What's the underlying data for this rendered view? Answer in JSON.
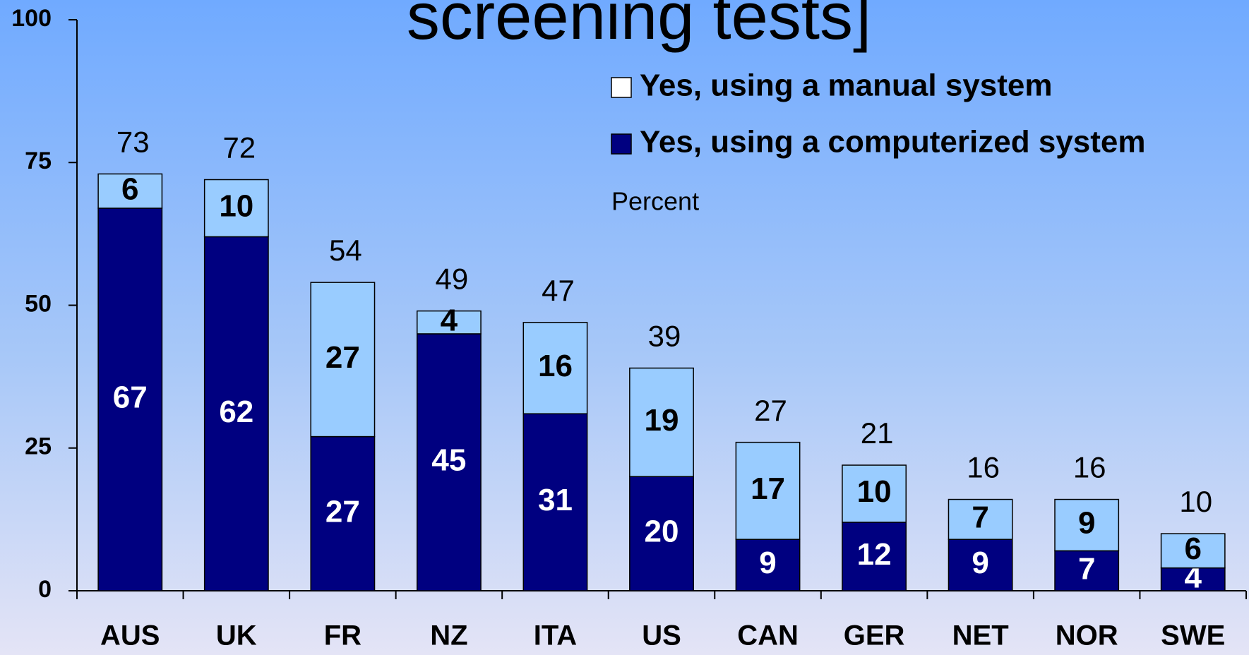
{
  "chart_data": {
    "type": "stacked-bar",
    "title": "screening tests]",
    "annotation": "Percent",
    "categories": [
      "AUS",
      "UK",
      "FR",
      "NZ",
      "ITA",
      "US",
      "CAN",
      "GER",
      "NET",
      "NOR",
      "SWE"
    ],
    "series": [
      {
        "name": "Yes, using a computerized system",
        "color": "#000080",
        "values": [
          67,
          62,
          27,
          45,
          31,
          20,
          9,
          12,
          9,
          7,
          4
        ]
      },
      {
        "name": "Yes, using a manual system",
        "color": "#99ccff",
        "values": [
          6,
          10,
          27,
          4,
          16,
          19,
          17,
          10,
          7,
          9,
          6
        ]
      }
    ],
    "totals": [
      73,
      72,
      54,
      49,
      47,
      39,
      27,
      21,
      16,
      16,
      10
    ],
    "ylim": [
      0,
      100
    ],
    "yticks": [
      0,
      25,
      50,
      75,
      100
    ],
    "grid": false
  }
}
